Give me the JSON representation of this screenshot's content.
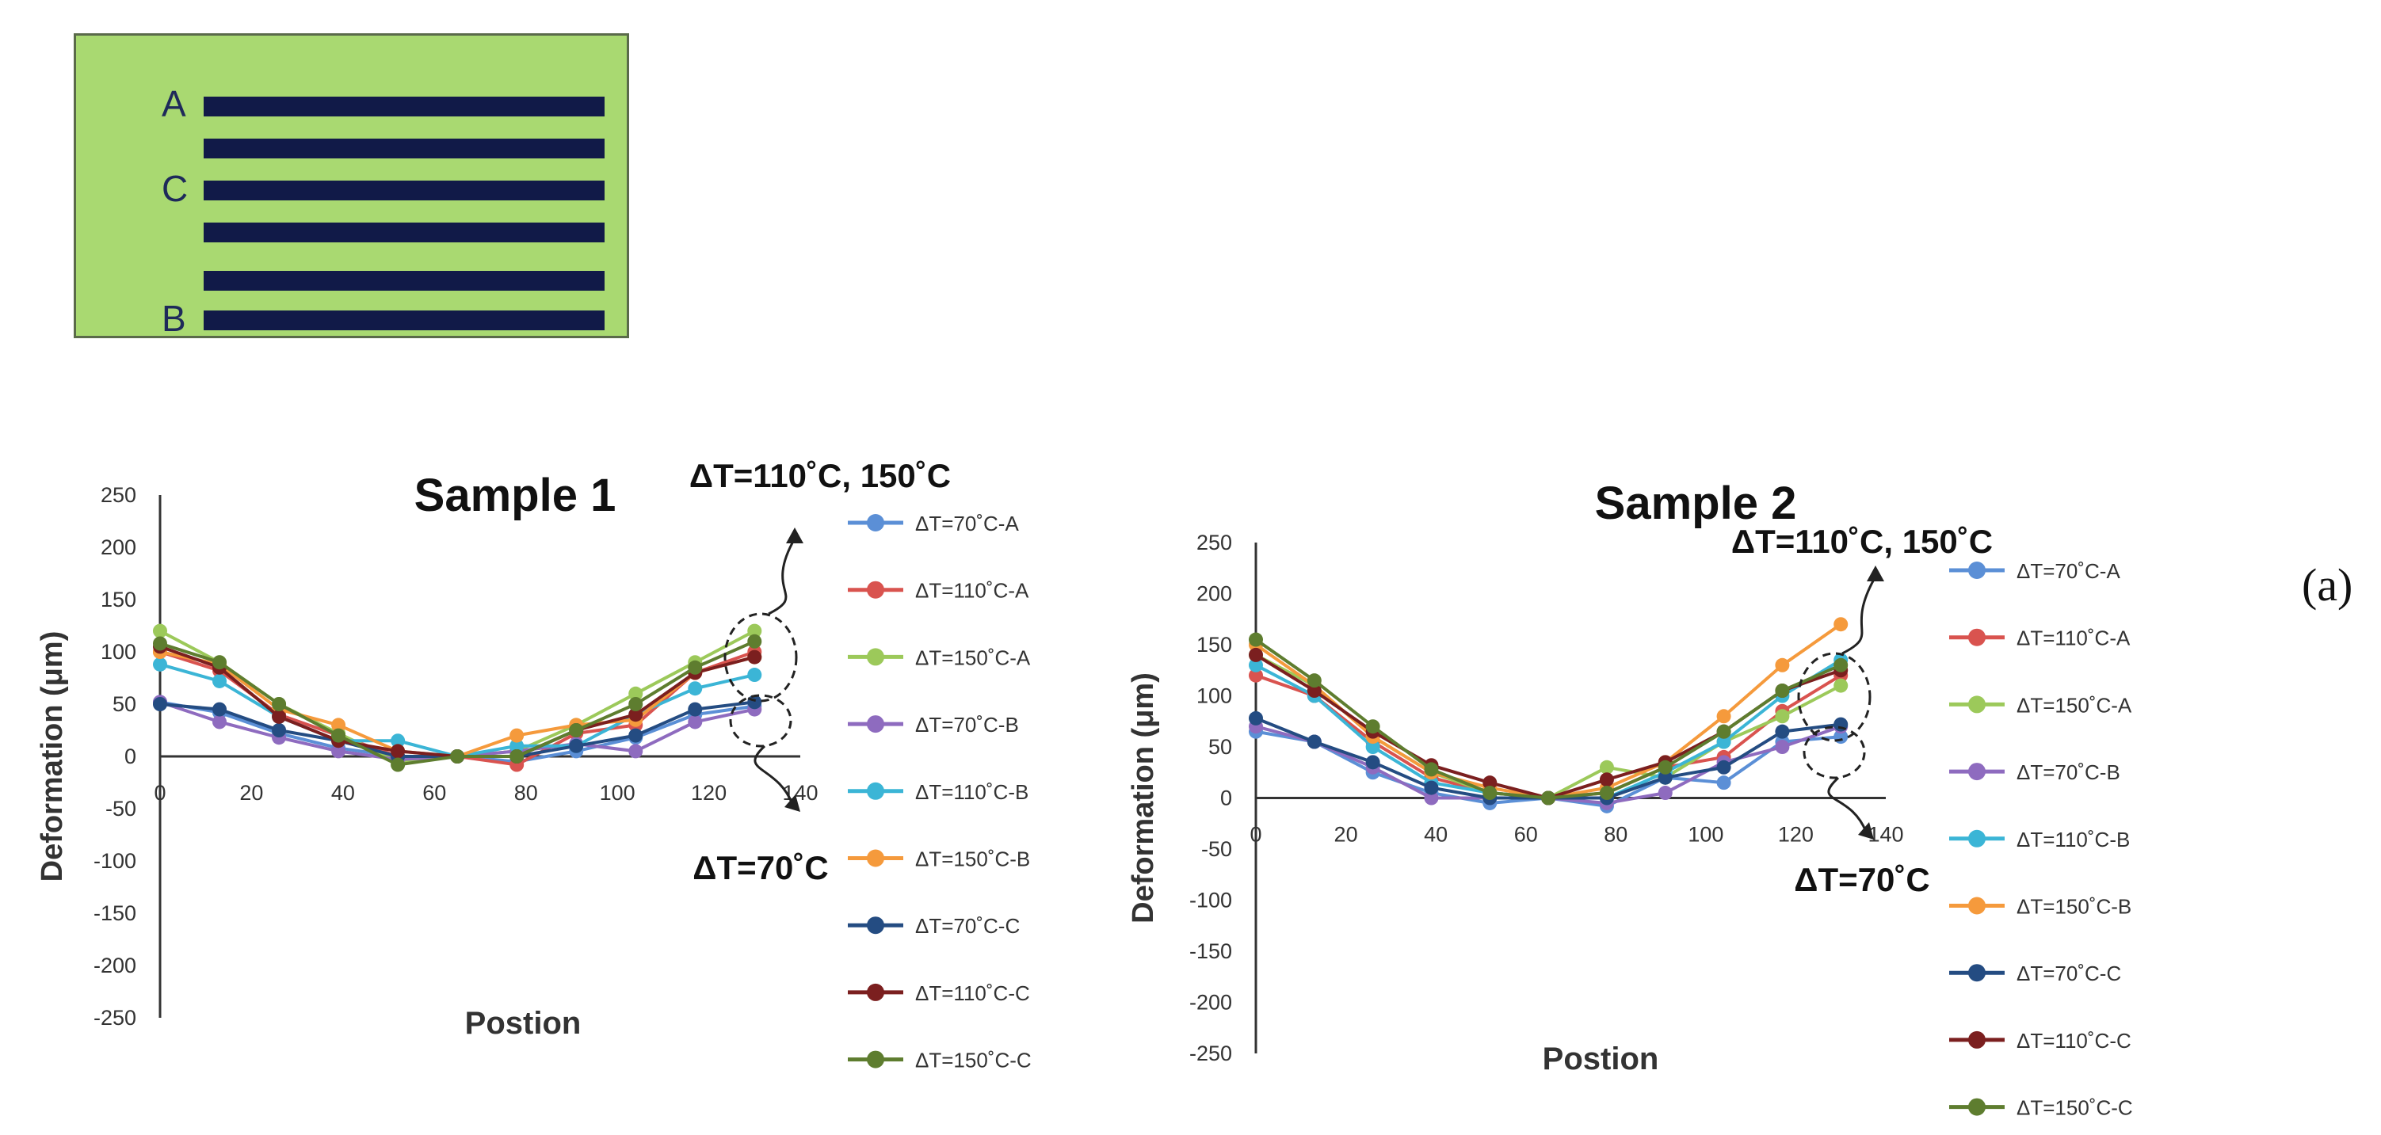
{
  "schematic": {
    "labels": [
      "A",
      "C",
      "B"
    ],
    "stripe_count": 6
  },
  "panel_label": "(a)",
  "colors": {
    "background": "#ffffff",
    "schematic_fill": "#a9d971",
    "stripe": "#111a48",
    "series": [
      "#5b8fd6",
      "#d9534f",
      "#9cc95a",
      "#8e6bbf",
      "#3bb5d6",
      "#f59a3c",
      "#244c82",
      "#7b1f1f",
      "#5e7d2f"
    ]
  },
  "chart_data": [
    {
      "type": "line",
      "title": "Sample 1",
      "xlabel": "Postion",
      "ylabel": "Deformation (μm)",
      "xlim": [
        0,
        140
      ],
      "ylim": [
        -250,
        250
      ],
      "x_ticks": [
        "0",
        "20",
        "40",
        "60",
        "80",
        "100",
        "120",
        "140"
      ],
      "y_ticks": [
        "250",
        "200",
        "150",
        "100",
        "50",
        "0",
        "-50",
        "-100",
        "-150",
        "-200",
        "-250"
      ],
      "x": [
        0,
        13,
        26,
        39,
        52,
        65,
        78,
        91,
        104,
        117,
        130
      ],
      "annotations": {
        "upper": "ΔT=110˚C, 150˚C",
        "lower": "ΔT=70˚C"
      },
      "series": [
        {
          "name": "ΔT=70˚C-A",
          "values": [
            52,
            42,
            22,
            8,
            0,
            0,
            -5,
            5,
            18,
            40,
            48
          ]
        },
        {
          "name": "ΔT=110˚C-A",
          "values": [
            100,
            82,
            40,
            20,
            0,
            0,
            -8,
            22,
            30,
            80,
            100
          ]
        },
        {
          "name": "ΔT=150˚C-A",
          "values": [
            120,
            90,
            50,
            22,
            -5,
            0,
            5,
            30,
            60,
            90,
            120
          ]
        },
        {
          "name": "ΔT=70˚C-B",
          "values": [
            52,
            33,
            18,
            5,
            -3,
            0,
            5,
            12,
            5,
            33,
            45
          ]
        },
        {
          "name": "ΔT=110˚C-B",
          "values": [
            88,
            72,
            38,
            15,
            15,
            0,
            10,
            10,
            40,
            65,
            78
          ]
        },
        {
          "name": "ΔT=150˚C-B",
          "values": [
            100,
            88,
            45,
            30,
            5,
            0,
            20,
            30,
            35,
            80,
            95
          ]
        },
        {
          "name": "ΔT=70˚C-C",
          "values": [
            50,
            45,
            25,
            15,
            0,
            0,
            0,
            10,
            20,
            45,
            52
          ]
        },
        {
          "name": "ΔT=110˚C-C",
          "values": [
            105,
            85,
            38,
            15,
            5,
            0,
            0,
            25,
            40,
            80,
            95
          ]
        },
        {
          "name": "ΔT=150˚C-C",
          "values": [
            108,
            90,
            50,
            20,
            -8,
            0,
            0,
            25,
            50,
            85,
            110
          ]
        }
      ]
    },
    {
      "type": "line",
      "title": "Sample 2",
      "xlabel": "Postion",
      "ylabel": "Deformation (μm)",
      "xlim": [
        0,
        140
      ],
      "ylim": [
        -250,
        250
      ],
      "x_ticks": [
        "0",
        "20",
        "40",
        "60",
        "80",
        "100",
        "120",
        "140"
      ],
      "y_ticks": [
        "250",
        "200",
        "150",
        "100",
        "50",
        "0",
        "-50",
        "-100",
        "-150",
        "-200",
        "-250"
      ],
      "x": [
        0,
        13,
        26,
        39,
        52,
        65,
        78,
        91,
        104,
        117,
        130
      ],
      "annotations": {
        "upper": "ΔT=110˚C, 150˚C",
        "lower": "ΔT=70˚C"
      },
      "series": [
        {
          "name": "ΔT=70˚C-A",
          "values": [
            65,
            55,
            25,
            5,
            -5,
            0,
            -8,
            20,
            15,
            55,
            60
          ]
        },
        {
          "name": "ΔT=110˚C-A",
          "values": [
            120,
            100,
            55,
            20,
            5,
            0,
            5,
            30,
            40,
            85,
            120
          ]
        },
        {
          "name": "ΔT=150˚C-A",
          "values": [
            140,
            110,
            60,
            25,
            5,
            0,
            30,
            20,
            55,
            80,
            110
          ]
        },
        {
          "name": "ΔT=70˚C-B",
          "values": [
            70,
            55,
            30,
            0,
            0,
            0,
            -5,
            5,
            35,
            50,
            70
          ]
        },
        {
          "name": "ΔT=110˚C-B",
          "values": [
            130,
            100,
            50,
            15,
            5,
            0,
            0,
            25,
            55,
            100,
            135
          ]
        },
        {
          "name": "ΔT=150˚C-B",
          "values": [
            150,
            110,
            60,
            25,
            10,
            0,
            10,
            35,
            80,
            130,
            170
          ]
        },
        {
          "name": "ΔT=70˚C-C",
          "values": [
            78,
            55,
            35,
            10,
            0,
            0,
            0,
            20,
            30,
            65,
            72
          ]
        },
        {
          "name": "ΔT=110˚C-C",
          "values": [
            140,
            105,
            65,
            32,
            15,
            0,
            18,
            35,
            65,
            105,
            125
          ]
        },
        {
          "name": "ΔT=150˚C-C",
          "values": [
            155,
            115,
            70,
            28,
            5,
            0,
            5,
            30,
            65,
            105,
            130
          ]
        }
      ]
    }
  ]
}
